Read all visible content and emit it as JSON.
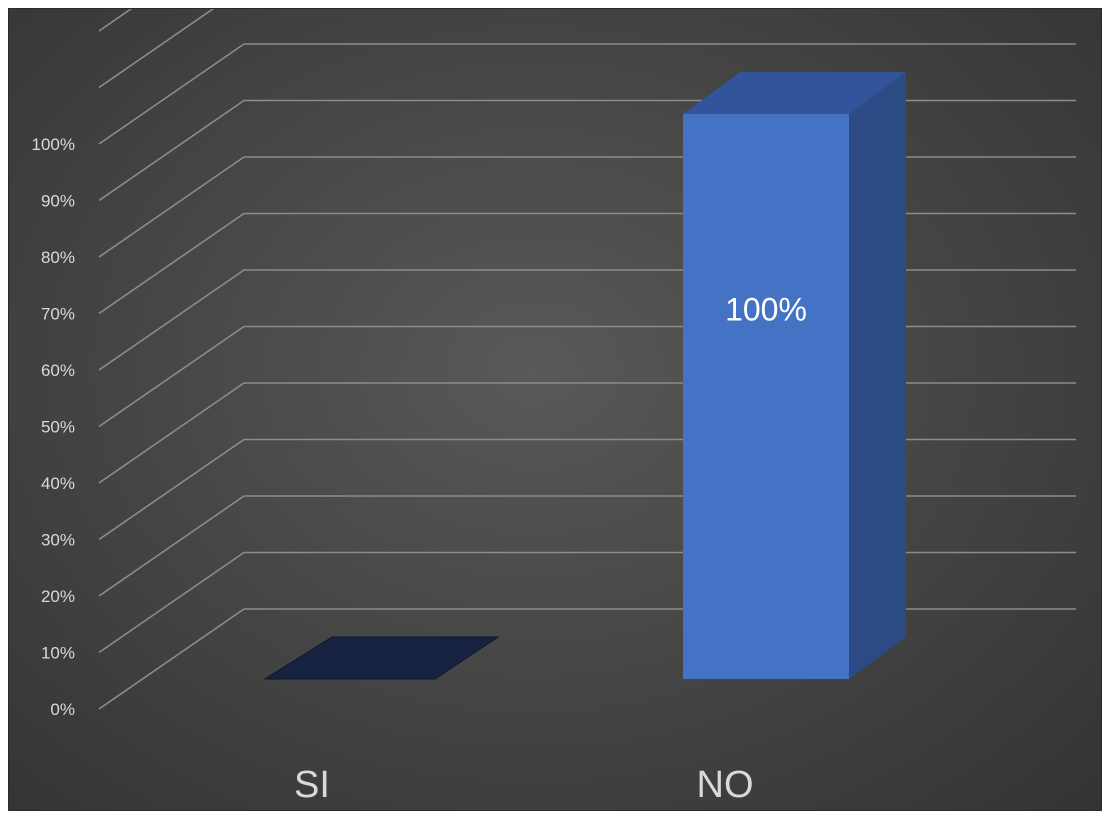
{
  "chart_data": {
    "type": "bar",
    "title": "",
    "xlabel": "",
    "ylabel": "",
    "categories": [
      "SI",
      "NO"
    ],
    "values": [
      0,
      100
    ],
    "value_labels": [
      "",
      "100%"
    ],
    "y_ticks": [
      "0%",
      "10%",
      "20%",
      "30%",
      "40%",
      "50%",
      "60%",
      "70%",
      "80%",
      "90%",
      "100%"
    ],
    "ylim": [
      0,
      120
    ],
    "grid": true,
    "legend": "none",
    "three_d": true,
    "colors": {
      "bar_front": "#4472C4",
      "bar_top": "#31549A",
      "bar_side": "#2C4B84",
      "bar_zero": "#172240",
      "gridline": "#8c8c8c",
      "text": "#d9d9d9",
      "data_label": "#ffffff"
    }
  }
}
